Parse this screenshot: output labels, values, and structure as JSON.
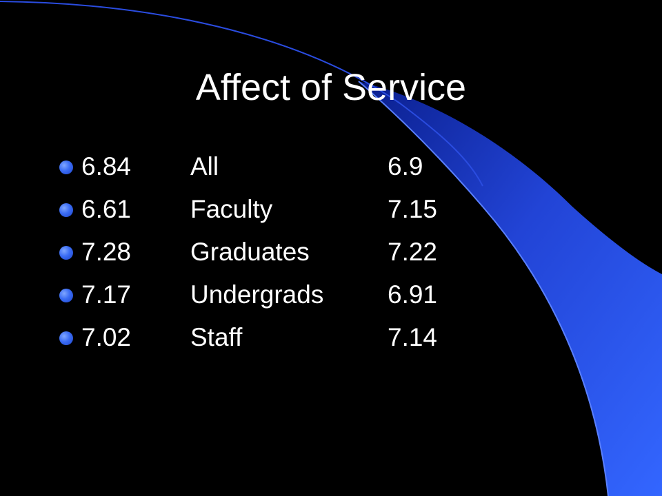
{
  "colors": {
    "background": "#000000",
    "accent": "#3366ff",
    "text": "#ffffff"
  },
  "slide": {
    "title": "Affect of Service",
    "rows": [
      {
        "left": "6.84",
        "group": "All",
        "right": "6.9"
      },
      {
        "left": "6.61",
        "group": "Faculty",
        "right": "7.15"
      },
      {
        "left": "7.28",
        "group": "Graduates",
        "right": "7.22"
      },
      {
        "left": "7.17",
        "group": "Undergrads",
        "right": "6.91"
      },
      {
        "left": "7.02",
        "group": "Staff",
        "right": "7.14"
      }
    ]
  }
}
